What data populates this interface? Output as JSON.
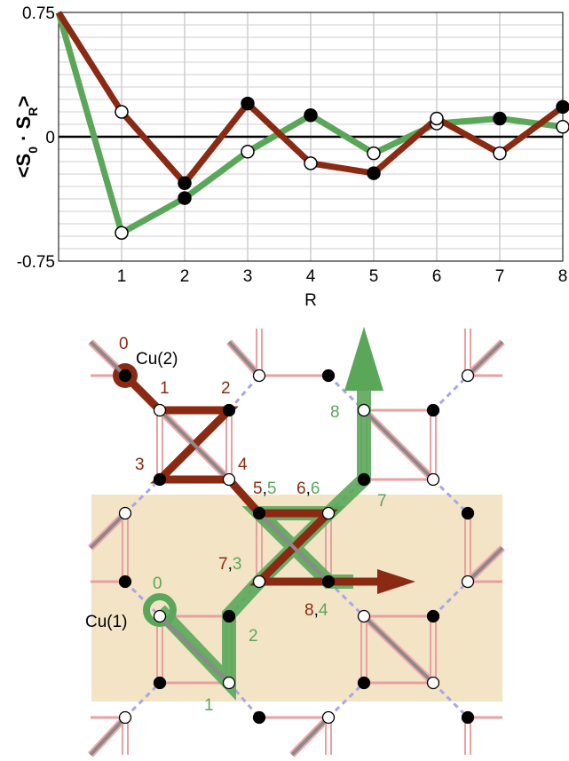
{
  "chart_data": {
    "type": "line",
    "ylabel_parts": [
      "<S",
      "0",
      " · S",
      "R",
      ">"
    ],
    "xlabel": "R",
    "xlim": [
      0,
      8
    ],
    "ylim": [
      -0.75,
      0.75
    ],
    "x_ticks": [
      "1",
      "2",
      "3",
      "4",
      "5",
      "6",
      "7",
      "8"
    ],
    "y_ticks": [
      "0.75",
      "0",
      "-0.75"
    ],
    "grid": true,
    "series": [
      {
        "color": "#5aa75a",
        "x": [
          0,
          1,
          2,
          3,
          4,
          5,
          6,
          7,
          8
        ],
        "y": [
          0.75,
          -0.58,
          -0.37,
          -0.09,
          0.13,
          -0.1,
          0.08,
          0.11,
          0.06
        ],
        "filled": [
          false,
          false,
          true,
          false,
          true,
          false,
          false,
          true,
          false
        ]
      },
      {
        "color": "#8b2a12",
        "x": [
          0,
          1,
          2,
          3,
          4,
          5,
          6,
          7,
          8
        ],
        "y": [
          0.75,
          0.15,
          -0.28,
          0.2,
          -0.16,
          -0.22,
          0.11,
          -0.1,
          0.18
        ],
        "filled": [
          false,
          false,
          true,
          true,
          false,
          true,
          false,
          false,
          true
        ]
      }
    ]
  },
  "diagram": {
    "cu2_label": "Cu(2)",
    "cu1_label": "Cu(1)",
    "red_labels": [
      "0",
      "1",
      "2",
      "3",
      "4",
      "5",
      "6",
      "7",
      "8"
    ],
    "green_labels": [
      "0",
      "1",
      "2",
      "3",
      "4",
      "5",
      "6",
      "7",
      "8"
    ],
    "separator": ","
  }
}
